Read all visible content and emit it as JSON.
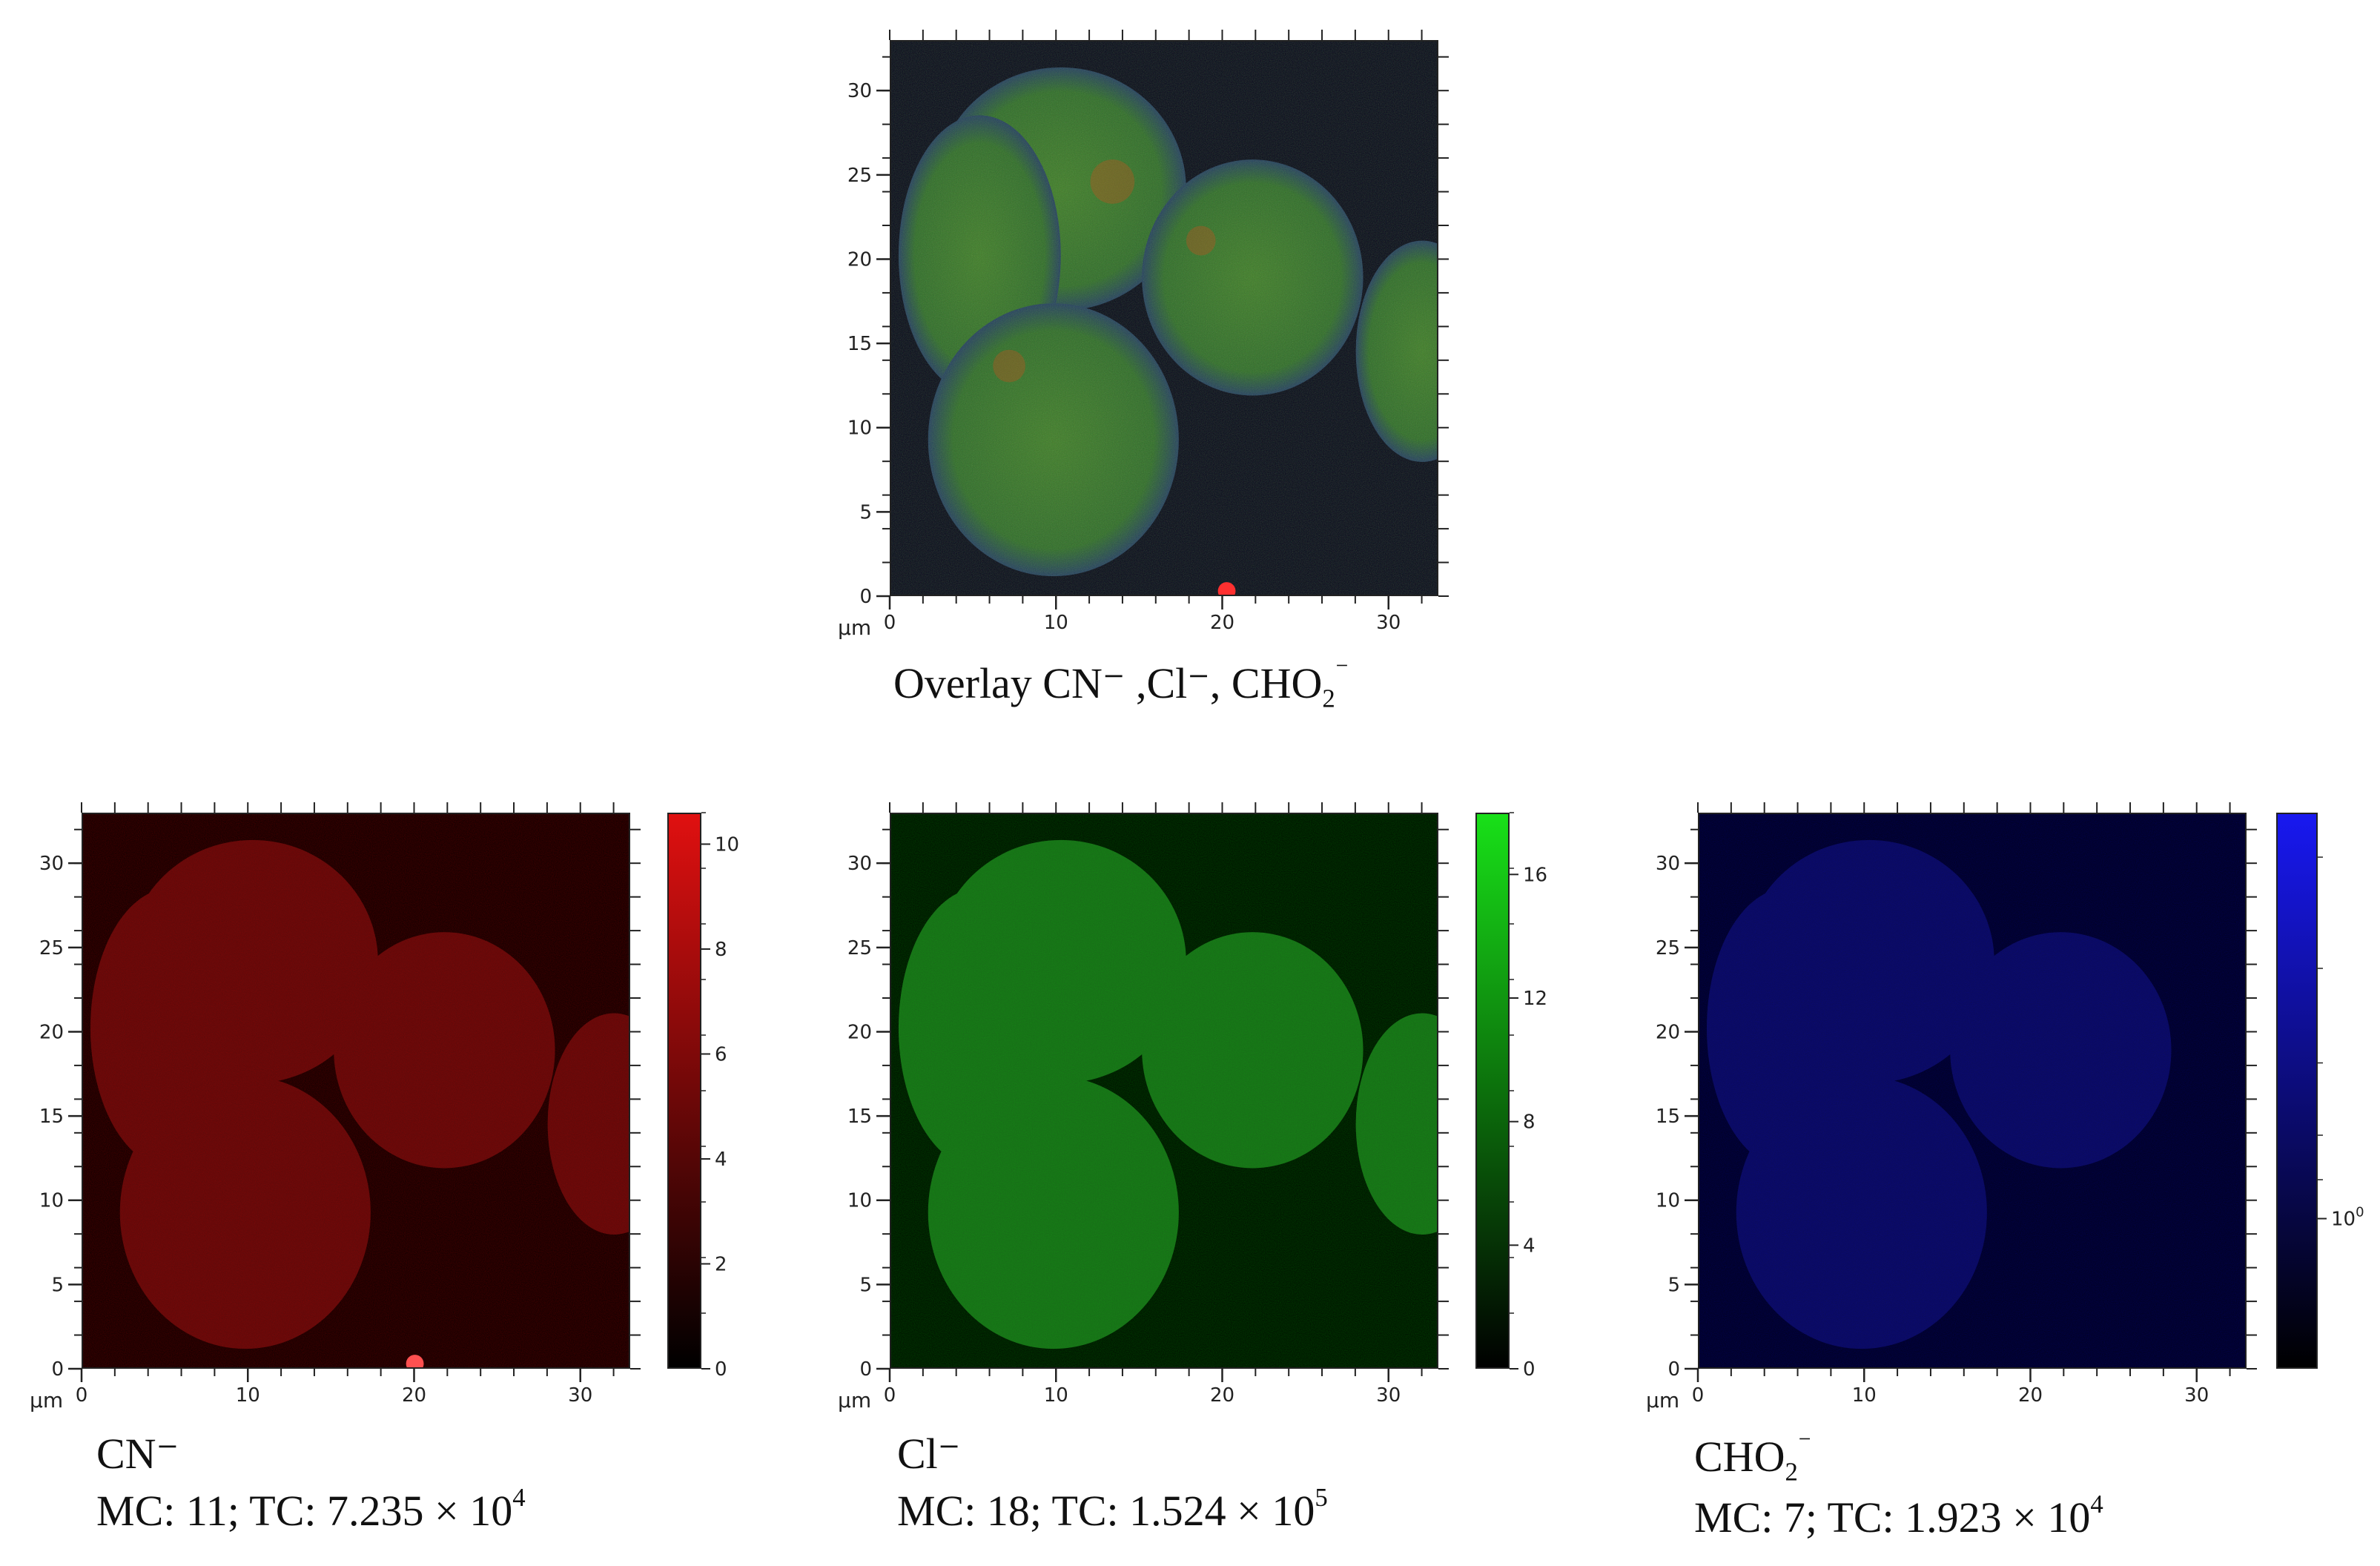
{
  "axis": {
    "unit": "µm",
    "x_ticks": [
      "0",
      "10",
      "20",
      "30"
    ],
    "y_ticks": [
      "0",
      "5",
      "10",
      "15",
      "20",
      "25",
      "30"
    ]
  },
  "overlay": {
    "caption_main": "Overlay CN⁻ ,Cl⁻, CHO",
    "caption_sub": "2",
    "caption_sup": "⁻"
  },
  "cn": {
    "name": "CN⁻",
    "stats": "MC: 11; TC: 7.235 × 10",
    "exp": "4",
    "color": "#e01010",
    "colorbar_ticks": [
      "10",
      "8",
      "6",
      "4",
      "2",
      "0"
    ]
  },
  "cl": {
    "name": "Cl⁻",
    "stats": "MC: 18; TC: 1.524 × 10",
    "exp": "5",
    "color": "#18e018",
    "colorbar_ticks": [
      "16",
      "12",
      "8",
      "4",
      "0"
    ]
  },
  "cho": {
    "name_main": "CHO",
    "name_sub": "2",
    "name_sup": "⁻",
    "stats": "MC: 7; TC: 1.923 × 10",
    "exp": "4",
    "color": "#1818f0",
    "colorbar_tick_base": "10",
    "colorbar_tick_exp": "0"
  }
}
